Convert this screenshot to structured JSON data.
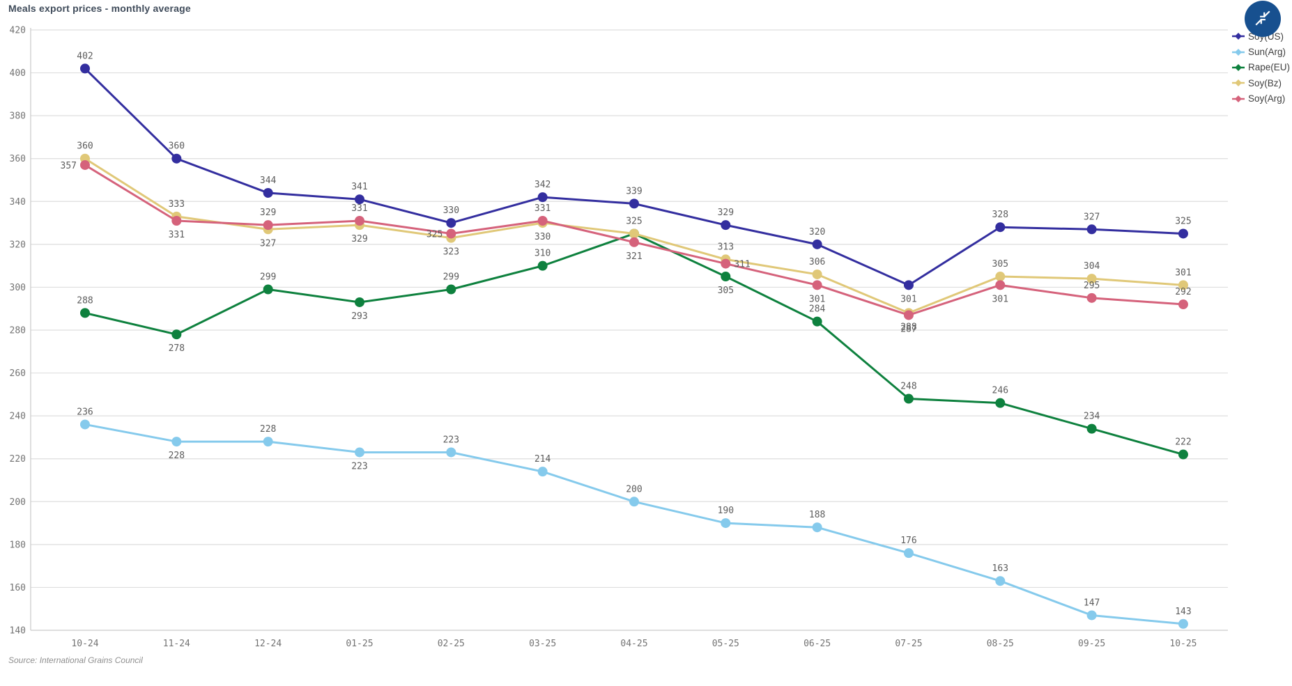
{
  "title": "Meals export prices - monthly average",
  "source": "Source: International Grains Council",
  "controls": {
    "minimize_button": {
      "icon": "collapse-arrows-icon",
      "color": "#17508f"
    }
  },
  "legend": {
    "position": "top-right",
    "items": [
      {
        "label": "Soy(US)",
        "color": "#332e9f"
      },
      {
        "label": "Sun(Arg)",
        "color": "#85caec"
      },
      {
        "label": "Rape(EU)",
        "color": "#0e813e"
      },
      {
        "label": "Soy(Bz)",
        "color": "#e0c878"
      },
      {
        "label": "Soy(Arg)",
        "color": "#d5627b"
      }
    ]
  },
  "chart_data": {
    "type": "line",
    "title": "Meals export prices - monthly average",
    "xlabel": "",
    "ylabel": "",
    "ylim": [
      140,
      420
    ],
    "yticks": [
      140,
      160,
      180,
      200,
      220,
      240,
      260,
      280,
      300,
      320,
      340,
      360,
      380,
      400,
      420
    ],
    "grid": "horizontal",
    "legend_position": "top-right",
    "point_labels": true,
    "categories": [
      "10-24",
      "11-24",
      "12-24",
      "01-25",
      "02-25",
      "03-25",
      "04-25",
      "05-25",
      "06-25",
      "07-25",
      "08-25",
      "09-25",
      "10-25"
    ],
    "series": [
      {
        "name": "Soy(US)",
        "color": "#332e9f",
        "values": [
          402,
          360,
          344,
          341,
          330,
          342,
          339,
          329,
          320,
          301,
          328,
          327,
          325
        ],
        "label_positions": [
          "above",
          "above",
          "above",
          "above",
          "above",
          "above",
          "above",
          "above",
          "above",
          "below",
          "above",
          "above",
          "above"
        ]
      },
      {
        "name": "Sun(Arg)",
        "color": "#85caec",
        "values": [
          236,
          228,
          228,
          223,
          223,
          214,
          200,
          190,
          188,
          176,
          163,
          147,
          143
        ],
        "label_positions": [
          "above",
          "below",
          "above",
          "below",
          "above",
          "above",
          "above",
          "above",
          "above",
          "above",
          "above",
          "above",
          "above"
        ]
      },
      {
        "name": "Rape(EU)",
        "color": "#0e813e",
        "values": [
          288,
          278,
          299,
          293,
          299,
          310,
          325,
          305,
          284,
          248,
          246,
          234,
          222
        ],
        "label_positions": [
          "above",
          "below",
          "above",
          "below",
          "above",
          "above",
          "hidden",
          "below",
          "above",
          "above",
          "above",
          "above",
          "above"
        ]
      },
      {
        "name": "Soy(Bz)",
        "color": "#e0c878",
        "values": [
          360,
          333,
          327,
          329,
          323,
          330,
          325,
          313,
          306,
          288,
          305,
          304,
          301
        ],
        "label_positions": [
          "above",
          "above",
          "below",
          "below",
          "below",
          "below",
          "above",
          "above",
          "above",
          "below",
          "above",
          "above",
          "above"
        ]
      },
      {
        "name": "Soy(Arg)",
        "color": "#d5627b",
        "values": [
          357,
          331,
          329,
          331,
          325,
          331,
          321,
          311,
          301,
          287,
          301,
          295,
          292
        ],
        "label_positions": [
          "left",
          "below",
          "above",
          "above",
          "left",
          "above",
          "below",
          "right",
          "below",
          "below",
          "below",
          "above",
          "above"
        ]
      }
    ]
  }
}
